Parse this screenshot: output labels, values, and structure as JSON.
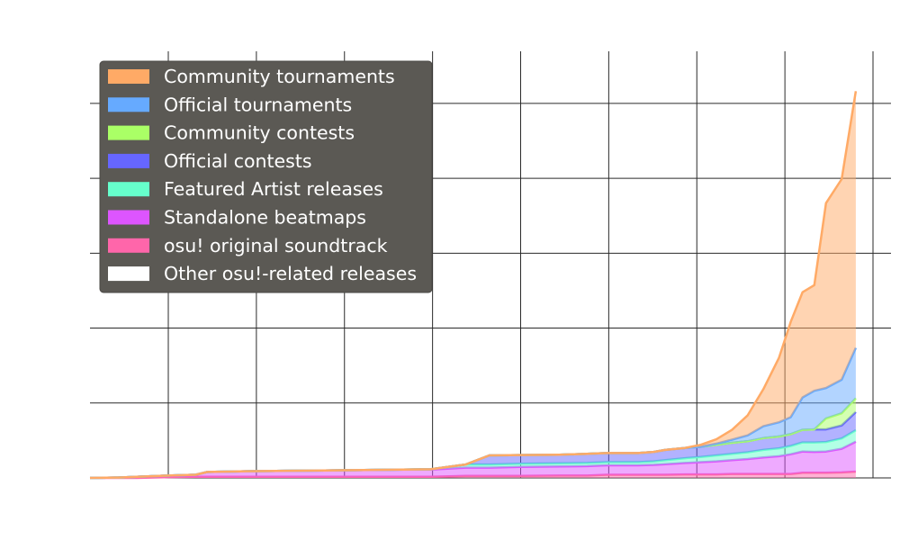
{
  "chart_data": {
    "type": "area",
    "stacked": true,
    "grid": true,
    "legend_position": "top-left",
    "xlim": [
      0,
      100
    ],
    "ylim": [
      0,
      100
    ],
    "x_gridlines": [
      10,
      21.25,
      32.5,
      43.75,
      55,
      66.25,
      77.5,
      88.75,
      100
    ],
    "y_gridlines": [
      0,
      19,
      38,
      57,
      76,
      95
    ],
    "x": [
      0,
      3.6,
      6,
      10,
      13.5,
      15,
      20,
      25,
      30,
      35,
      40,
      43.5,
      48,
      51,
      55,
      60,
      63.5,
      66,
      70,
      72,
      73.5,
      76,
      78,
      80,
      82,
      84,
      86,
      88,
      89.5,
      91,
      92.5,
      94,
      96,
      97.8
    ],
    "series": [
      {
        "name": "osu! original soundtrack",
        "color": "#ff66aa",
        "values": [
          0,
          0,
          0,
          0.2,
          0.3,
          0.3,
          0.3,
          0.3,
          0.3,
          0.3,
          0.3,
          0.3,
          0.5,
          0.5,
          0.5,
          0.6,
          0.6,
          0.8,
          0.8,
          0.8,
          0.8,
          0.9,
          0.9,
          0.9,
          1,
          1,
          1,
          1,
          1,
          1.3,
          1.3,
          1.3,
          1.4,
          1.6
        ]
      },
      {
        "name": "Standalone beatmaps",
        "color": "#dd55ff",
        "values": [
          0,
          0.1,
          0.3,
          0.4,
          0.5,
          1.2,
          1.4,
          1.5,
          1.6,
          1.7,
          1.8,
          1.8,
          2.1,
          2.1,
          2.3,
          2.3,
          2.4,
          2.4,
          2.4,
          2.5,
          2.7,
          2.9,
          3.1,
          3.3,
          3.5,
          3.8,
          4.2,
          4.5,
          5,
          5.4,
          5.3,
          5.4,
          6,
          7.6
        ]
      },
      {
        "name": "Featured Artist releases",
        "color": "#66ffcc",
        "values": [
          0,
          0,
          0,
          0,
          0,
          0,
          0,
          0,
          0,
          0,
          0,
          0.1,
          0.8,
          0.8,
          0.8,
          0.8,
          0.8,
          0.8,
          0.8,
          0.9,
          1,
          1.2,
          1.3,
          1.5,
          1.6,
          1.7,
          1.9,
          2,
          2.1,
          2.3,
          2.4,
          2.4,
          2.6,
          2.9
        ]
      },
      {
        "name": "Official contests",
        "color": "#6666ff",
        "values": [
          0,
          0,
          0,
          0,
          0,
          0,
          0,
          0,
          0,
          0,
          0,
          0,
          0,
          2.3,
          2.2,
          2.2,
          2.3,
          2.3,
          2.3,
          2.4,
          2.6,
          2.6,
          2.6,
          2.7,
          2.8,
          2.8,
          3,
          3,
          3,
          3.2,
          3.3,
          3.2,
          3.3,
          4.6
        ]
      },
      {
        "name": "Community contests",
        "color": "#aaff66",
        "values": [
          0,
          0,
          0,
          0,
          0,
          0,
          0,
          0,
          0,
          0,
          0,
          0,
          0,
          0,
          0,
          0,
          0,
          0,
          0,
          0,
          0,
          0,
          0,
          0,
          0,
          0,
          0,
          0,
          0,
          0,
          0,
          2.8,
          3.1,
          3.5
        ]
      },
      {
        "name": "Official tournaments",
        "color": "#66aaff",
        "values": [
          0,
          0,
          0,
          0,
          0,
          0,
          0,
          0,
          0,
          0,
          0,
          0,
          0,
          0,
          0,
          0,
          0,
          0,
          0,
          0,
          0,
          0,
          0,
          0.3,
          0.8,
          1.5,
          3,
          3.6,
          4.3,
          8.2,
          9.8,
          7.7,
          8.5,
          12.8
        ]
      },
      {
        "name": "Community tournaments",
        "color": "#ffaa66",
        "values": [
          0,
          0,
          0,
          0,
          0,
          0,
          0,
          0,
          0,
          0,
          0,
          0,
          0,
          0,
          0,
          0,
          0,
          0,
          0,
          0,
          0,
          0,
          0.5,
          1.1,
          2.5,
          5.1,
          9.4,
          16.4,
          24.2,
          26.7,
          26.8,
          46.9,
          50.9,
          65.1
        ]
      },
      {
        "name": "Other osu!-related releases",
        "color": "#ffffff",
        "values": [
          0,
          0,
          0,
          0,
          0,
          0,
          0,
          0,
          0,
          0,
          0,
          0,
          0,
          0,
          0,
          0,
          0,
          0,
          0,
          0,
          0,
          0,
          0,
          0,
          0,
          0,
          0,
          0,
          0,
          0,
          0,
          0,
          0,
          0
        ]
      }
    ],
    "legend": [
      {
        "label": "Community tournaments",
        "color": "#ffaa66"
      },
      {
        "label": "Official tournaments",
        "color": "#66aaff"
      },
      {
        "label": "Community contests",
        "color": "#aaff66"
      },
      {
        "label": "Official contests",
        "color": "#6666ff"
      },
      {
        "label": "Featured Artist releases",
        "color": "#66ffcc"
      },
      {
        "label": "Standalone beatmaps",
        "color": "#dd55ff"
      },
      {
        "label": "osu! original soundtrack",
        "color": "#ff66aa"
      },
      {
        "label": "Other osu!-related releases",
        "color": "#ffffff"
      }
    ],
    "legend_background": "#5b5954"
  }
}
